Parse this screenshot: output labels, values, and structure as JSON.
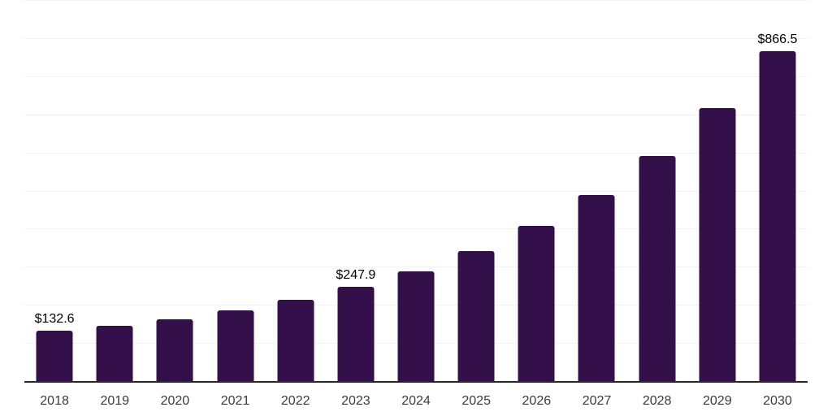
{
  "chart_data": {
    "type": "bar",
    "title": "",
    "xlabel": "",
    "ylabel": "",
    "categories": [
      "2018",
      "2019",
      "2020",
      "2021",
      "2022",
      "2023",
      "2024",
      "2025",
      "2026",
      "2027",
      "2028",
      "2029",
      "2030"
    ],
    "values": [
      132.6,
      145.3,
      162.4,
      186.2,
      213.9,
      247.9,
      288.9,
      341.9,
      408.1,
      489.3,
      589.7,
      715.8,
      866.5
    ],
    "value_labels": [
      "$132.6",
      "",
      "",
      "",
      "",
      "$247.9",
      "",
      "",
      "",
      "",
      "",
      "",
      "$866.5"
    ],
    "ylim": [
      0,
      1000
    ],
    "grid_step": 100,
    "grid": "horizontal-only",
    "legend": "none",
    "y_axis_tick_labels": "none"
  },
  "colors": {
    "background": "#ffffff",
    "bar": "#34104b",
    "axis": "#262626",
    "grid": "#f2f2f2",
    "tick_label": "#3a3a3a",
    "value_label": "#000000"
  }
}
